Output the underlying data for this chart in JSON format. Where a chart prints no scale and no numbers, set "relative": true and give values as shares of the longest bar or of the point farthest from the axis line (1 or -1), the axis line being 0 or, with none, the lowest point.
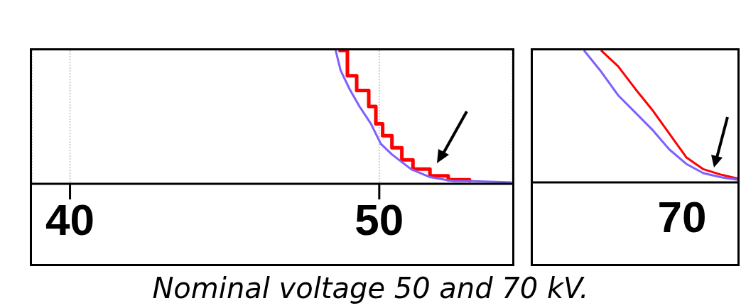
{
  "chart_data": [
    {
      "type": "line",
      "relative": true,
      "grid": "x",
      "xlim": [
        38.77,
        54.3
      ],
      "xticks": [
        40,
        50
      ],
      "annotations": [
        "Nominal voltage 50 and 70 kV."
      ],
      "series": [
        {
          "type": "step",
          "color": "#ff0000",
          "x": [
            48.68,
            48.97,
            49.27,
            49.66,
            49.89,
            50.11,
            50.41,
            50.73,
            51.09,
            51.64,
            52.23,
            52.92
          ],
          "values": [
            1,
            0.81,
            0.7,
            0.58,
            0.45,
            0.36,
            0.27,
            0.18,
            0.11,
            0.06,
            0.03,
            0.01
          ]
        },
        {
          "color": "#7f5fff",
          "x": [
            48.59,
            48.75,
            49.04,
            49.36,
            49.73,
            50.05,
            50.41,
            51.03,
            51.64,
            52.39,
            53.01,
            54.28
          ],
          "values": [
            1,
            0.85,
            0.71,
            0.58,
            0.45,
            0.3,
            0.22,
            0.11,
            0.05,
            0.02,
            0.02,
            0.01
          ]
        }
      ]
    },
    {
      "type": "line",
      "relative": true,
      "categories": [
        null,
        null,
        null,
        null,
        null,
        null,
        null,
        null,
        null,
        null,
        null,
        null,
        null
      ],
      "annotations": [
        "70"
      ],
      "series": [
        {
          "color": "#ff0000",
          "values": [
            null,
            null,
            null,
            null,
            1,
            0.88,
            0.71,
            0.55,
            0.37,
            0.19,
            0.1,
            0.06,
            0.03
          ]
        },
        {
          "color": "#7f5fff",
          "values": [
            null,
            null,
            null,
            1,
            0.84,
            0.66,
            0.53,
            0.4,
            0.25,
            0.14,
            0.07,
            0.04,
            0.02
          ]
        }
      ]
    }
  ]
}
